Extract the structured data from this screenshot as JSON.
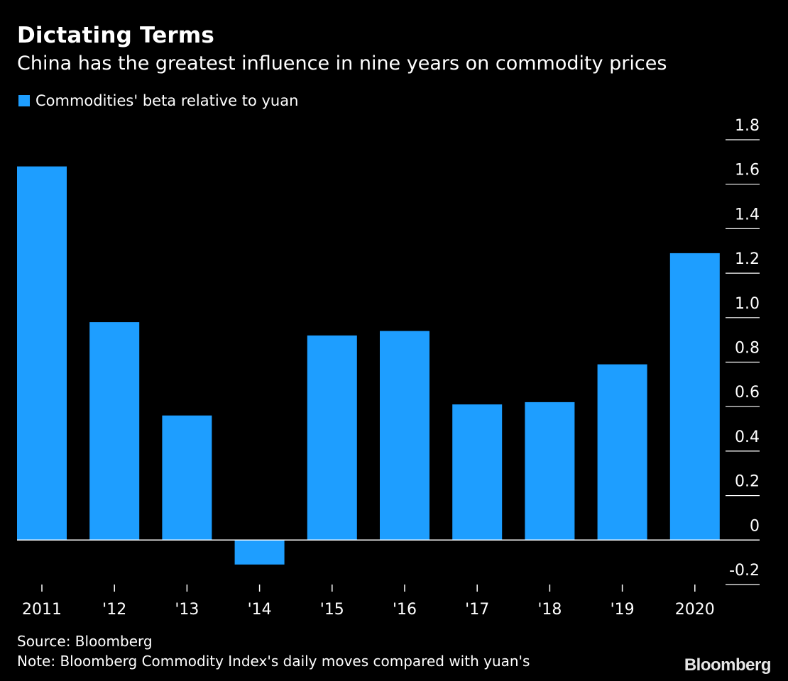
{
  "colors": {
    "background": "#000000",
    "bar": "#1e9eff",
    "text": "#ffffff",
    "axis": "#ffffff"
  },
  "chart_data": {
    "type": "bar",
    "title": "Dictating Terms",
    "subtitle": "China has the greatest influence in nine years on commodity prices",
    "categories": [
      "2011",
      "'12",
      "'13",
      "'14",
      "'15",
      "'16",
      "'17",
      "'18",
      "'19",
      "2020"
    ],
    "series": [
      {
        "name": "Commodities' beta relative to yuan",
        "values": [
          1.68,
          0.98,
          0.56,
          -0.11,
          0.92,
          0.94,
          0.61,
          0.62,
          0.79,
          1.29
        ]
      }
    ],
    "ylim": [
      -0.2,
      1.8
    ],
    "yticks": [
      "1.8",
      "1.6",
      "1.4",
      "1.2",
      "1.0",
      "0.8",
      "0.6",
      "0.4",
      "0.2",
      "0",
      "-0.2"
    ],
    "ytick_values": [
      1.8,
      1.6,
      1.4,
      1.2,
      1.0,
      0.8,
      0.6,
      0.4,
      0.2,
      0,
      -0.2
    ],
    "y_axis_position": "right",
    "grid": false
  },
  "footer": {
    "source": "Source: Bloomberg",
    "note": "Note: Bloomberg Commodity Index's daily moves compared with yuan's",
    "brand": "Bloomberg"
  }
}
